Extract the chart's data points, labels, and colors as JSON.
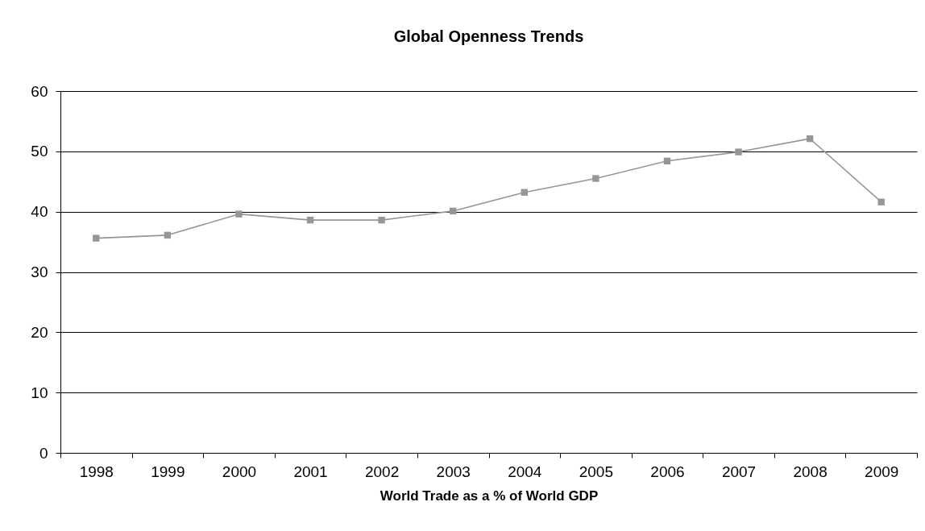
{
  "chart_data": {
    "type": "line",
    "title": "Global Openness Trends",
    "xlabel": "World Trade as a % of World GDP",
    "categories": [
      "1998",
      "1999",
      "2000",
      "2001",
      "2002",
      "2003",
      "2004",
      "2005",
      "2006",
      "2007",
      "2008",
      "2009"
    ],
    "series": [
      {
        "color": "#969696",
        "values": [
          35.6,
          36.1,
          39.6,
          38.6,
          38.6,
          40.1,
          43.2,
          45.5,
          48.4,
          49.9,
          52.1,
          41.6
        ]
      }
    ],
    "ylim": [
      0,
      60
    ],
    "yticks": [
      0,
      10,
      20,
      30,
      40,
      50,
      60
    ],
    "grid": "y",
    "marker": "square",
    "line_style": "solid",
    "legend": false
  }
}
